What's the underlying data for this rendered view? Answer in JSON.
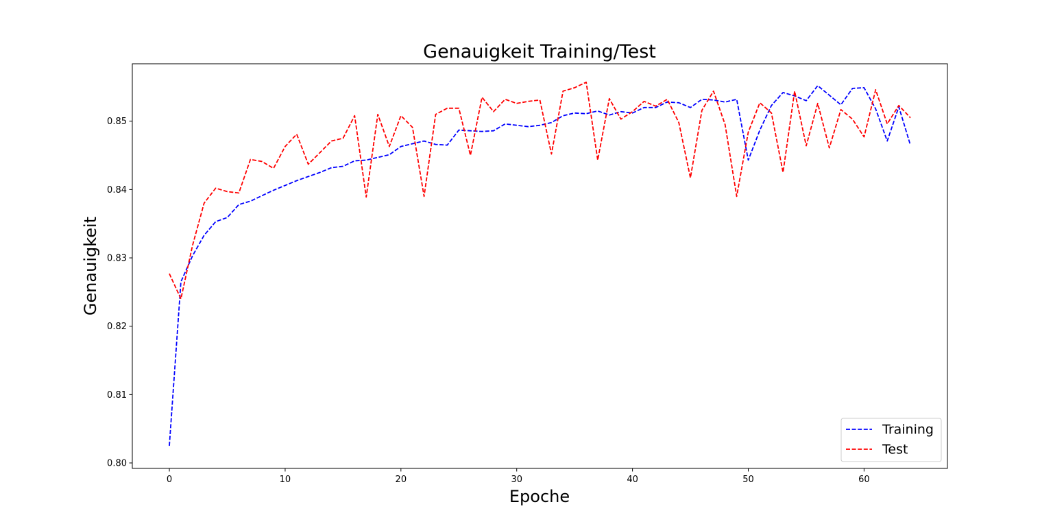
{
  "chart_data": {
    "type": "line",
    "title": "Genauigkeit Training/Test",
    "xlabel": "Epoche",
    "ylabel": "Genauigkeit",
    "xlim": [
      -3.2,
      67.2
    ],
    "ylim": [
      0.7992,
      0.8584
    ],
    "xticks": [
      0,
      10,
      20,
      30,
      40,
      50,
      60
    ],
    "yticks": [
      0.8,
      0.81,
      0.82,
      0.83,
      0.84,
      0.85
    ],
    "ytick_labels": [
      "0.80",
      "0.81",
      "0.82",
      "0.83",
      "0.84",
      "0.85"
    ],
    "grid": false,
    "legend_position": "lower right",
    "series": [
      {
        "name": "Training",
        "color": "#0000ff",
        "linestyle": "dashed",
        "x": [
          0,
          1,
          2,
          3,
          4,
          5,
          6,
          7,
          8,
          9,
          10,
          11,
          12,
          13,
          14,
          15,
          16,
          17,
          18,
          19,
          20,
          21,
          22,
          23,
          24,
          25,
          26,
          27,
          28,
          29,
          30,
          31,
          32,
          33,
          34,
          35,
          36,
          37,
          38,
          39,
          40,
          41,
          42,
          43,
          44,
          45,
          46,
          47,
          48,
          49,
          50,
          51,
          52,
          53,
          54,
          55,
          56,
          57,
          58,
          59,
          60,
          61,
          62,
          63,
          64
        ],
        "values": [
          0.8025,
          0.8265,
          0.8303,
          0.8333,
          0.8353,
          0.8359,
          0.8378,
          0.8383,
          0.8391,
          0.8399,
          0.8406,
          0.8413,
          0.8419,
          0.8425,
          0.8432,
          0.8434,
          0.8442,
          0.8443,
          0.8447,
          0.8451,
          0.8463,
          0.8467,
          0.8471,
          0.8466,
          0.8465,
          0.8487,
          0.8486,
          0.8485,
          0.8486,
          0.8496,
          0.8494,
          0.8492,
          0.8494,
          0.8498,
          0.8508,
          0.8512,
          0.8511,
          0.8515,
          0.8509,
          0.8514,
          0.8512,
          0.852,
          0.852,
          0.8528,
          0.8527,
          0.852,
          0.8532,
          0.8531,
          0.8528,
          0.8532,
          0.8443,
          0.8487,
          0.8523,
          0.8542,
          0.8537,
          0.853,
          0.8552,
          0.8538,
          0.8524,
          0.8548,
          0.8549,
          0.8518,
          0.8471,
          0.8521,
          0.8465
        ]
      },
      {
        "name": "Test",
        "color": "#ff0000",
        "linestyle": "dashed",
        "x": [
          0,
          1,
          2,
          3,
          4,
          5,
          6,
          7,
          8,
          9,
          10,
          11,
          12,
          13,
          14,
          15,
          16,
          17,
          18,
          19,
          20,
          21,
          22,
          23,
          24,
          25,
          26,
          27,
          28,
          29,
          30,
          31,
          32,
          33,
          34,
          35,
          36,
          37,
          38,
          39,
          40,
          41,
          42,
          43,
          44,
          45,
          46,
          47,
          48,
          49,
          50,
          51,
          52,
          53,
          54,
          55,
          56,
          57,
          58,
          59,
          60,
          61,
          62,
          63,
          64
        ],
        "values": [
          0.8277,
          0.824,
          0.8318,
          0.838,
          0.8402,
          0.8397,
          0.8395,
          0.8444,
          0.8441,
          0.8431,
          0.8463,
          0.8481,
          0.8437,
          0.8454,
          0.8471,
          0.8475,
          0.8508,
          0.8389,
          0.851,
          0.8463,
          0.8508,
          0.8491,
          0.839,
          0.851,
          0.8519,
          0.8519,
          0.845,
          0.8535,
          0.8514,
          0.8532,
          0.8526,
          0.8529,
          0.8531,
          0.8452,
          0.8544,
          0.8549,
          0.8557,
          0.8443,
          0.8533,
          0.8503,
          0.8514,
          0.8529,
          0.8522,
          0.8532,
          0.8498,
          0.8417,
          0.8516,
          0.8544,
          0.8495,
          0.839,
          0.8484,
          0.8527,
          0.8512,
          0.8425,
          0.8544,
          0.8464,
          0.8526,
          0.8461,
          0.8517,
          0.8503,
          0.8477,
          0.8546,
          0.8496,
          0.8523,
          0.8505
        ]
      }
    ]
  }
}
